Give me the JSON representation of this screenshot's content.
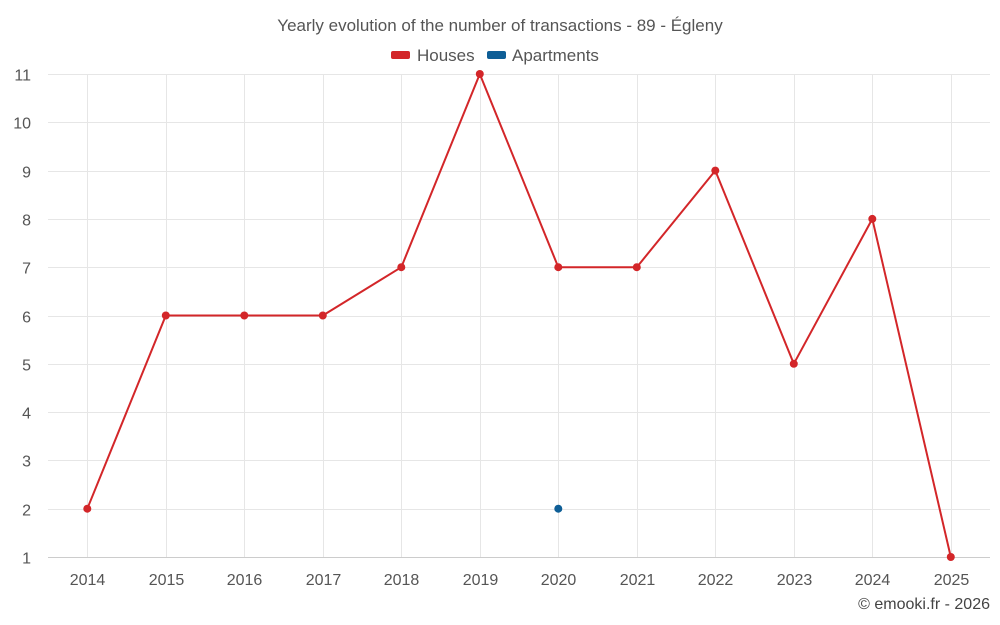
{
  "chart_data": {
    "type": "line",
    "title": "Yearly evolution of the number of transactions - 89 - Égleny",
    "categories": [
      "2014",
      "2015",
      "2016",
      "2017",
      "2018",
      "2019",
      "2020",
      "2021",
      "2022",
      "2023",
      "2024",
      "2025"
    ],
    "series": [
      {
        "name": "Houses",
        "color": "#d32629",
        "values": [
          2,
          6,
          6,
          6,
          7,
          11,
          7,
          7,
          9,
          5,
          8,
          1
        ]
      },
      {
        "name": "Apartments",
        "color": "#0e5e96",
        "values": [
          null,
          null,
          null,
          null,
          null,
          null,
          2,
          null,
          null,
          null,
          null,
          null
        ]
      }
    ],
    "ylim": [
      1,
      11
    ],
    "yticks": [
      1,
      2,
      3,
      4,
      5,
      6,
      7,
      8,
      9,
      10,
      11
    ],
    "xlabel": "",
    "ylabel": "",
    "grid": true,
    "legend": "top-center"
  },
  "credit": "© emooki.fr - 2026"
}
